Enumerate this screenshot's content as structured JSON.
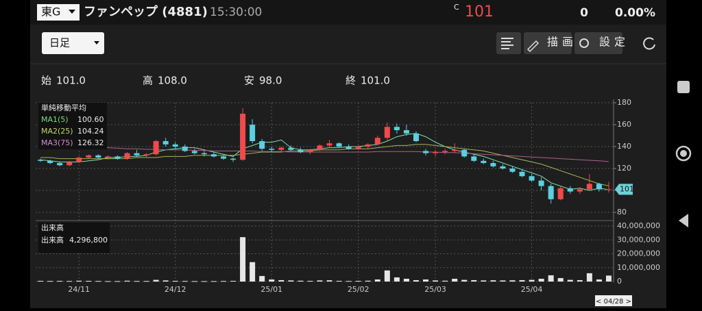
{
  "header": {
    "market": "東G",
    "name": "ファンペップ (4881)",
    "time": "15:30:00",
    "c_mark": "C",
    "price": 101,
    "change": 0,
    "change_pct": "0.00%"
  },
  "toolbar": {
    "period": "日足",
    "draw": "描画",
    "settings": "設定"
  },
  "ohlc_summary": [
    {
      "label": "始",
      "value": "101.0"
    },
    {
      "label": "高",
      "value": "108.0"
    },
    {
      "label": "安",
      "value": "98.0"
    },
    {
      "label": "終",
      "value": "101.0"
    }
  ],
  "chart_data": [
    {
      "type": "candlestick",
      "categories": [
        null,
        null,
        null,
        null,
        "24/11",
        null,
        null,
        null,
        null,
        null,
        null,
        null,
        null,
        null,
        "24/12",
        null,
        null,
        null,
        null,
        null,
        null,
        null,
        null,
        null,
        "25/01",
        null,
        null,
        null,
        null,
        null,
        null,
        null,
        null,
        "25/02",
        null,
        null,
        null,
        null,
        null,
        null,
        null,
        "25/03",
        null,
        null,
        null,
        null,
        null,
        null,
        null,
        null,
        null,
        "25/04",
        null,
        null,
        null,
        null,
        null,
        null,
        null,
        null
      ],
      "open": [
        128,
        127,
        125,
        123,
        126,
        130,
        132,
        130,
        131,
        129,
        134,
        132,
        133,
        145,
        142,
        140,
        136,
        134,
        133,
        131,
        129,
        128,
        160,
        145,
        138,
        137,
        139,
        137,
        135,
        137,
        141,
        143,
        140,
        138,
        140,
        142,
        148,
        158,
        155,
        152,
        136,
        134,
        135,
        136,
        137,
        131,
        127,
        125,
        122,
        120,
        117,
        113,
        109,
        104,
        92,
        102,
        99,
        101,
        106,
        101
      ],
      "high": [
        129,
        128,
        126,
        127,
        131,
        133,
        133,
        132,
        132,
        135,
        137,
        134,
        146,
        148,
        144,
        142,
        138,
        136,
        135,
        132,
        130,
        175,
        165,
        147,
        140,
        140,
        141,
        139,
        138,
        142,
        146,
        144,
        142,
        141,
        143,
        150,
        162,
        161,
        160,
        154,
        138,
        137,
        138,
        143,
        138,
        133,
        129,
        127,
        124,
        122,
        119,
        115,
        112,
        106,
        104,
        104,
        103,
        115,
        107,
        108
      ],
      "low": [
        126,
        124,
        122,
        122,
        125,
        129,
        129,
        128,
        128,
        128,
        131,
        130,
        132,
        140,
        138,
        135,
        133,
        131,
        130,
        128,
        126,
        127,
        143,
        136,
        135,
        135,
        136,
        134,
        133,
        136,
        139,
        139,
        137,
        137,
        138,
        141,
        146,
        152,
        150,
        144,
        132,
        131,
        133,
        134,
        130,
        126,
        124,
        121,
        119,
        116,
        112,
        108,
        100,
        88,
        91,
        97,
        97,
        100,
        99,
        98
      ],
      "close": [
        127,
        125,
        123,
        126,
        130,
        132,
        130,
        131,
        129,
        134,
        132,
        133,
        145,
        142,
        140,
        136,
        134,
        133,
        131,
        129,
        128,
        170,
        145,
        138,
        137,
        139,
        137,
        135,
        137,
        141,
        143,
        140,
        138,
        140,
        142,
        148,
        158,
        155,
        152,
        145,
        134,
        135,
        136,
        137,
        131,
        127,
        125,
        122,
        120,
        117,
        113,
        109,
        104,
        92,
        102,
        99,
        101,
        106,
        101,
        101
      ],
      "up_color": "#f04a4a",
      "down_color": "#5ad0e0",
      "ylim": [
        80,
        180
      ],
      "yticks": [
        80,
        100,
        120,
        140,
        160,
        180
      ],
      "grid": true,
      "legend_title": "単純移動平均",
      "series": [
        {
          "name": "MA1(5)",
          "color": "#7fe3b0",
          "legend_color": "#7ddc7d",
          "last_label": "100.60",
          "values": [
            128,
            127,
            126,
            126,
            126,
            127,
            128,
            130,
            130,
            131,
            131,
            132,
            135,
            137,
            138,
            139,
            139,
            137,
            135,
            133,
            131,
            138,
            141,
            144,
            144,
            146,
            139,
            137,
            137,
            138,
            139,
            139,
            140,
            140,
            141,
            142,
            145,
            149,
            151,
            152,
            149,
            144,
            140,
            137,
            135,
            133,
            131,
            128,
            125,
            122,
            119,
            116,
            113,
            107,
            104,
            101,
            102,
            100,
            102,
            100.6
          ]
        },
        {
          "name": "MA2(25)",
          "color": "#a9b45a",
          "legend_color": "#c8d86b",
          "last_label": "104.24",
          "values": [
            130,
            130,
            129,
            129,
            129,
            129,
            129,
            129,
            129,
            129,
            130,
            130,
            130,
            131,
            131,
            131,
            132,
            132,
            132,
            132,
            132,
            133,
            134,
            135,
            135,
            135,
            136,
            136,
            136,
            137,
            137,
            137,
            138,
            138,
            138,
            139,
            140,
            141,
            141,
            142,
            142,
            141,
            140,
            139,
            138,
            137,
            136,
            134,
            132,
            130,
            128,
            126,
            124,
            121,
            118,
            115,
            112,
            109,
            106,
            104.24
          ]
        },
        {
          "name": "MA3(75)",
          "color": "#b0608f",
          "legend_color": "#d68fd6",
          "last_label": "126.32",
          "values": [
            141,
            141,
            140.5,
            140,
            140,
            139.5,
            139,
            139,
            138.5,
            138,
            138,
            137.5,
            137.5,
            137,
            137,
            137,
            136.5,
            136.5,
            136,
            136,
            136,
            136,
            136,
            135.5,
            135.5,
            135.5,
            135,
            135,
            135,
            135,
            135,
            135,
            135,
            135,
            135,
            135.5,
            135.5,
            135.5,
            135.5,
            135.5,
            135,
            135,
            134.5,
            134.5,
            134,
            133.5,
            133,
            132.5,
            132,
            131.5,
            131,
            130.5,
            130,
            129.5,
            129,
            128.5,
            128,
            127.5,
            127,
            126.32
          ]
        }
      ],
      "cursor_label": "< 04/28 >"
    },
    {
      "type": "bar",
      "title": "出来高",
      "legend_label": "出来高",
      "legend_value": "4,296,800",
      "color": "#e6e6e6",
      "values": [
        500000,
        400000,
        500000,
        400000,
        600000,
        500000,
        400000,
        300000,
        300000,
        600000,
        400000,
        400000,
        1200000,
        800000,
        500000,
        400000,
        300000,
        300000,
        300000,
        400000,
        500000,
        32000000,
        14000000,
        4000000,
        1500000,
        1000000,
        800000,
        600000,
        500000,
        800000,
        900000,
        500000,
        400000,
        500000,
        600000,
        1500000,
        8000000,
        3000000,
        2000000,
        1000000,
        1500000,
        800000,
        600000,
        2000000,
        1200000,
        1000000,
        800000,
        900000,
        800000,
        900000,
        1000000,
        1200000,
        2000000,
        4500000,
        2500000,
        1200000,
        1000000,
        6000000,
        1500000,
        4296800
      ],
      "ylim": [
        0,
        40000000
      ],
      "yticks": [
        0,
        {
          "value": 10000000,
          "label": "10,000,000"
        },
        {
          "value": 20000000,
          "label": "20,000,000"
        },
        {
          "value": 30000000,
          "label": "30,000,000"
        },
        {
          "value": 40000000,
          "label": "40,000,000"
        }
      ]
    }
  ]
}
